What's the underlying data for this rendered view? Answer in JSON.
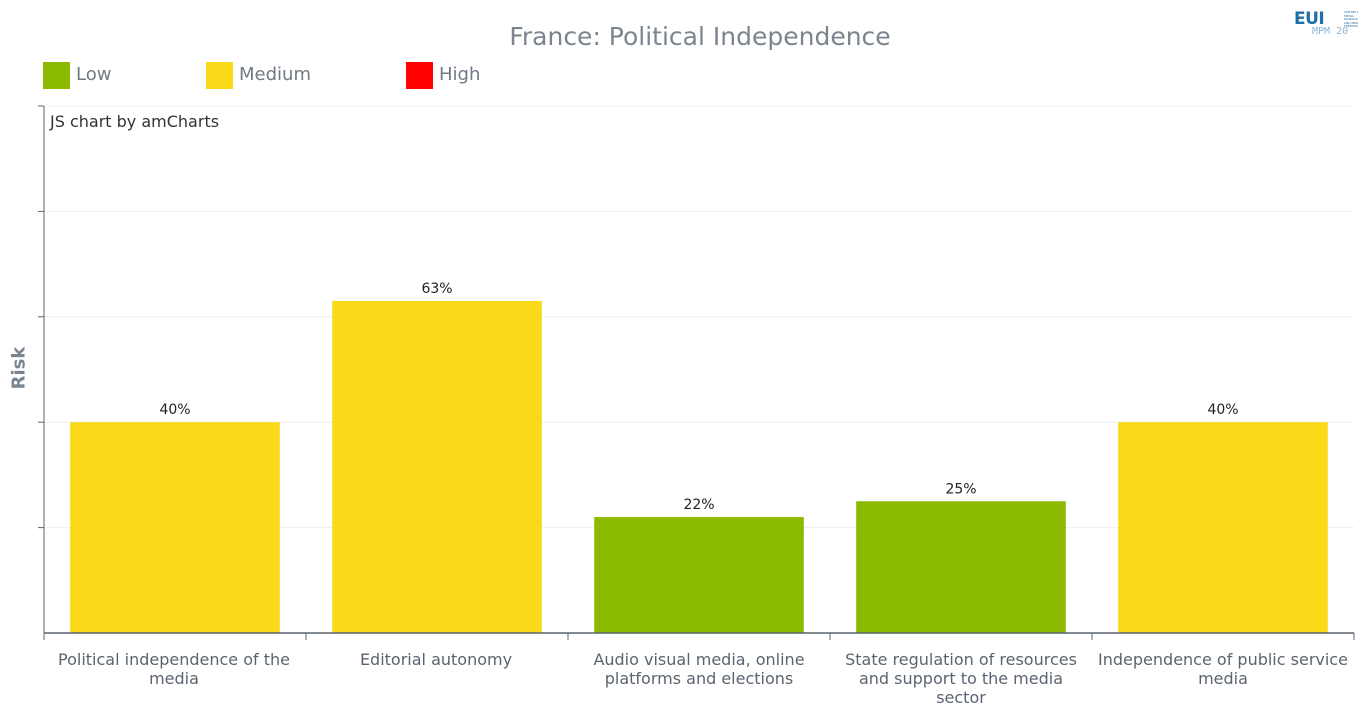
{
  "chart_data": {
    "type": "bar",
    "title": "France: Political Independence",
    "ylabel": "Risk",
    "xlabel": "",
    "ylim": [
      0,
      100
    ],
    "grid": true,
    "legend": {
      "placement": "top-left",
      "items": [
        {
          "label": "Low",
          "color": "#8cba00"
        },
        {
          "label": "Medium",
          "color": "#fada18"
        },
        {
          "label": "High",
          "color": "#ff0000"
        }
      ]
    },
    "categories": [
      "Political independence of the media",
      "Editorial autonomy",
      "Audio visual media, online platforms and elections",
      "State regulation of resources and support to the media sector",
      "Independence of public service media"
    ],
    "values": [
      40,
      63,
      22,
      25,
      40
    ],
    "data_labels": [
      "40%",
      "63%",
      "22%",
      "25%",
      "40%"
    ],
    "risk_levels": [
      "Medium",
      "Medium",
      "Low",
      "Low",
      "Medium"
    ],
    "bar_colors": [
      "#fada18",
      "#fada18",
      "#8cba00",
      "#8cba00",
      "#fada18"
    ]
  },
  "credit": "JS chart by amCharts",
  "logo": {
    "text": "EUI",
    "small_text": "CENTRE FOR MEDIA PLURALISM AND MEDIA FREEDOM",
    "subtext": "MPM 20"
  }
}
